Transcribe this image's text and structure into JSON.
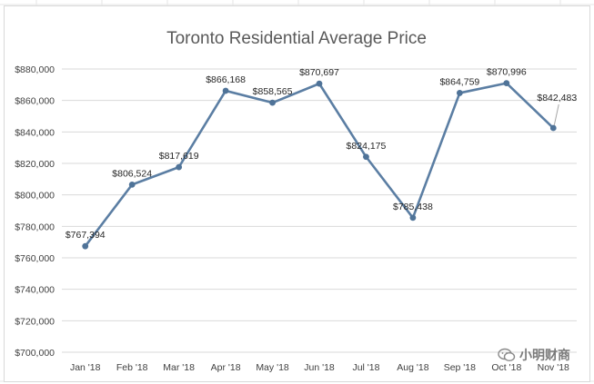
{
  "chart_data": {
    "type": "line",
    "title": "Toronto Residential Average Price",
    "xlabel": "",
    "ylabel": "",
    "categories": [
      "Jan '18",
      "Feb '18",
      "Mar '18",
      "Apr '18",
      "May '18",
      "Jun '18",
      "Jul '18",
      "Aug '18",
      "Sep '18",
      "Oct '18",
      "Nov '18"
    ],
    "series": [
      {
        "name": "Average Price",
        "values": [
          767394,
          806524,
          817619,
          866168,
          858565,
          870697,
          824175,
          785438,
          864759,
          870996,
          842483
        ],
        "labels": [
          "$767,394",
          "$806,524",
          "$817,619",
          "$866,168",
          "$858,565",
          "$870,697",
          "$824,175",
          "$785,438",
          "$864,759",
          "$870,996",
          "$842,483"
        ]
      }
    ],
    "ylim": [
      700000,
      880000
    ],
    "yticks": [
      700000,
      720000,
      740000,
      760000,
      780000,
      800000,
      820000,
      840000,
      860000,
      880000
    ],
    "ytick_labels": [
      "$700,000",
      "$720,000",
      "$740,000",
      "$760,000",
      "$780,000",
      "$800,000",
      "$820,000",
      "$840,000",
      "$860,000",
      "$880,000"
    ],
    "grid": true,
    "legend": "none",
    "colors": {
      "line": "#5b7ea3",
      "marker": "#4f7398",
      "grid": "#d9d9d9"
    }
  },
  "watermark": {
    "text": "小明财商",
    "icon": "wechat-bubble-icon"
  }
}
